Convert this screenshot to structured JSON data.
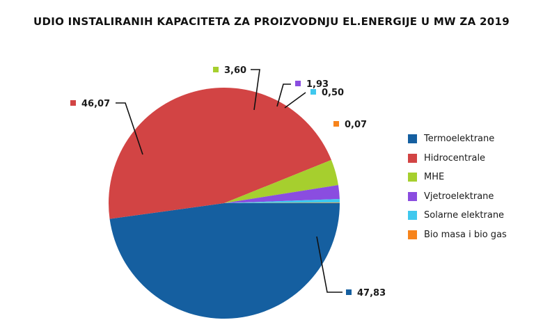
{
  "chart_data": {
    "type": "pie",
    "title": "UDIO INSTALIRANIH KAPACITETA ZA PROIZVODNJU EL.ENERGIJE U MW ZA 2019",
    "series": [
      {
        "name": "Termoelektrane",
        "value": 47.83,
        "label": "47,83",
        "color": "#155fa0"
      },
      {
        "name": "Hidrocentrale",
        "value": 46.07,
        "label": "46,07",
        "color": "#d24444"
      },
      {
        "name": "MHE",
        "value": 3.6,
        "label": "3,60",
        "color": "#a6cf2e"
      },
      {
        "name": "Vjetroelektrane",
        "value": 1.93,
        "label": "1,93",
        "color": "#8a4de0"
      },
      {
        "name": "Solarne elektrane",
        "value": 0.5,
        "label": "0,50",
        "color": "#3fc8ee"
      },
      {
        "name": "Bio masa i bio gas",
        "value": 0.07,
        "label": "0,07",
        "color": "#f7841c"
      }
    ],
    "legend_position": "right"
  }
}
